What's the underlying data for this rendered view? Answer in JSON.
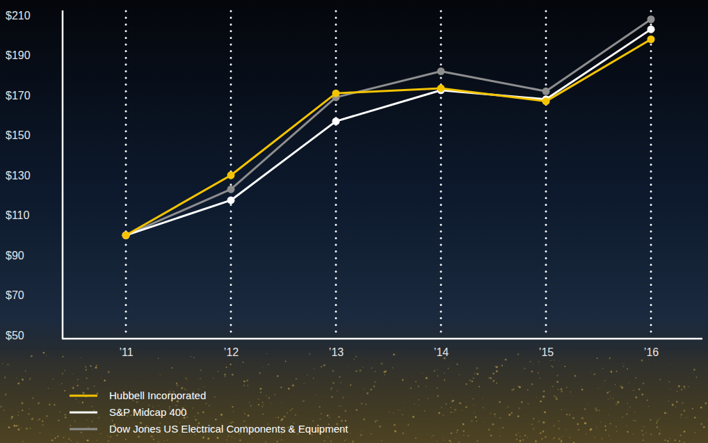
{
  "chart_data": {
    "type": "line",
    "categories": [
      "’11",
      "’12",
      "’13",
      "’14",
      "’15",
      "’16"
    ],
    "series": [
      {
        "name": "Hubbell Incorporated",
        "color": "#f5c400",
        "marker": "circle",
        "values": [
          100,
          130,
          171,
          173.5,
          167,
          198
        ]
      },
      {
        "name": "S&P Midcap 400",
        "color": "#ffffff",
        "marker": "circle",
        "values": [
          100,
          117.5,
          157,
          172.5,
          168,
          203
        ]
      },
      {
        "name": "Dow Jones US Electrical Components & Equipment",
        "color": "#8e8e8e",
        "marker": "circle",
        "values": [
          100,
          123,
          169,
          182,
          172,
          208
        ]
      }
    ],
    "ylim": [
      50,
      210
    ],
    "yticks": [
      {
        "value": 50,
        "label": "$50"
      },
      {
        "value": 70,
        "label": "$70"
      },
      {
        "value": 90,
        "label": "$90"
      },
      {
        "value": 110,
        "label": "$110"
      },
      {
        "value": 130,
        "label": "$130"
      },
      {
        "value": 150,
        "label": "$150"
      },
      {
        "value": 170,
        "label": "$170"
      },
      {
        "value": 190,
        "label": "$190"
      },
      {
        "value": 210,
        "label": "$210"
      }
    ],
    "grid": true,
    "legend": "bottom"
  }
}
